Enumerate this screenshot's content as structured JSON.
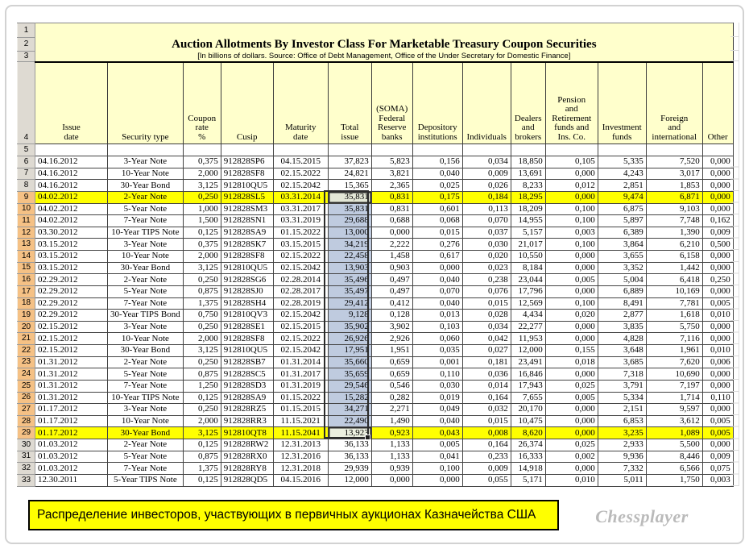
{
  "sheet": {
    "title": "Auction Allotments By Investor Class For Marketable Treasury Coupon Securities",
    "subtitle": "[In billions of dollars. Source: Office of Debt Management, Office of the Under Secretary for Domestic Finance]",
    "gutter_top": [
      "1",
      "2",
      "3",
      "4",
      "5"
    ],
    "columns": [
      "Issue\ndate",
      "Security type",
      "Coupon\nrate\n%",
      "Cusip",
      "Maturity\ndate",
      "Total\nissue",
      "(SOMA)\nFederal\nReserve\nbanks",
      "Depository\ninstitutions",
      "Individuals",
      "Dealers\nand\nbrokers",
      "Pension\nand\nRetirement\nfunds and\nIns. Co.",
      "Investment\nfunds",
      "Foreign\nand\ninternational",
      "Other"
    ],
    "highlight_rows": [
      9,
      29
    ],
    "selection": {
      "from": 9,
      "to": 29,
      "column": "Total issue"
    },
    "rows": [
      {
        "n": 6,
        "c": [
          "04.16.2012",
          "3-Year Note",
          "0,375",
          "912828SP6",
          "04.15.2015",
          "37,823",
          "5,823",
          "0,156",
          "0,034",
          "18,850",
          "0,105",
          "5,335",
          "7,520",
          "0,000"
        ]
      },
      {
        "n": 7,
        "c": [
          "04.16.2012",
          "10-Year Note",
          "2,000",
          "912828SF8",
          "02.15.2022",
          "24,821",
          "3,821",
          "0,040",
          "0,009",
          "13,691",
          "0,000",
          "4,243",
          "3,017",
          "0,000"
        ]
      },
      {
        "n": 8,
        "c": [
          "04.16.2012",
          "30-Year Bond",
          "3,125",
          "912810QU5",
          "02.15.2042",
          "15,365",
          "2,365",
          "0,025",
          "0,026",
          "8,233",
          "0,012",
          "2,851",
          "1,853",
          "0,000"
        ]
      },
      {
        "n": 9,
        "c": [
          "04.02.2012",
          "2-Year Note",
          "0,250",
          "912828SL5",
          "03.31.2014",
          "35,831",
          "0,831",
          "0,175",
          "0,184",
          "18,295",
          "0,000",
          "9,474",
          "6,871",
          "0,000"
        ]
      },
      {
        "n": 10,
        "c": [
          "04.02.2012",
          "5-Year Note",
          "1,000",
          "912828SM3",
          "03.31.2017",
          "35,831",
          "0,831",
          "0,601",
          "0,113",
          "18,209",
          "0,100",
          "6,875",
          "9,103",
          "0,000"
        ]
      },
      {
        "n": 11,
        "c": [
          "04.02.2012",
          "7-Year Note",
          "1,500",
          "912828SN1",
          "03.31.2019",
          "29,688",
          "0,688",
          "0,068",
          "0,070",
          "14,955",
          "0,100",
          "5,897",
          "7,748",
          "0,162"
        ]
      },
      {
        "n": 12,
        "c": [
          "03.30.2012",
          "10-Year TIPS Note",
          "0,125",
          "912828SA9",
          "01.15.2022",
          "13,000",
          "0,000",
          "0,015",
          "0,037",
          "5,157",
          "0,003",
          "6,389",
          "1,390",
          "0,009"
        ]
      },
      {
        "n": 13,
        "c": [
          "03.15.2012",
          "3-Year Note",
          "0,375",
          "912828SK7",
          "03.15.2015",
          "34,219",
          "2,222",
          "0,276",
          "0,030",
          "21,017",
          "0,100",
          "3,864",
          "6,210",
          "0,500"
        ]
      },
      {
        "n": 14,
        "c": [
          "03.15.2012",
          "10-Year Note",
          "2,000",
          "912828SF8",
          "02.15.2022",
          "22,458",
          "1,458",
          "0,617",
          "0,020",
          "10,550",
          "0,000",
          "3,655",
          "6,158",
          "0,000"
        ]
      },
      {
        "n": 15,
        "c": [
          "03.15.2012",
          "30-Year Bond",
          "3,125",
          "912810QU5",
          "02.15.2042",
          "13,903",
          "0,903",
          "0,000",
          "0,023",
          "8,184",
          "0,000",
          "3,352",
          "1,442",
          "0,000"
        ]
      },
      {
        "n": 16,
        "c": [
          "02.29.2012",
          "2-Year Note",
          "0,250",
          "912828SG6",
          "02.28.2014",
          "35,496",
          "0,497",
          "0,040",
          "0,238",
          "23,044",
          "0,005",
          "5,004",
          "6,418",
          "0,250"
        ]
      },
      {
        "n": 17,
        "c": [
          "02.29.2012",
          "5-Year Note",
          "0,875",
          "912828SJ0",
          "02.28.2017",
          "35,497",
          "0,497",
          "0,070",
          "0,076",
          "17,796",
          "0,000",
          "6,889",
          "10,169",
          "0,000"
        ]
      },
      {
        "n": 18,
        "c": [
          "02.29.2012",
          "7-Year Note",
          "1,375",
          "912828SH4",
          "02.28.2019",
          "29,412",
          "0,412",
          "0,040",
          "0,015",
          "12,569",
          "0,100",
          "8,491",
          "7,781",
          "0,005"
        ]
      },
      {
        "n": 19,
        "c": [
          "02.29.2012",
          "30-Year TIPS Bond",
          "0,750",
          "912810QV3",
          "02.15.2042",
          "9,128",
          "0,128",
          "0,013",
          "0,028",
          "4,434",
          "0,020",
          "2,877",
          "1,618",
          "0,010"
        ]
      },
      {
        "n": 20,
        "c": [
          "02.15.2012",
          "3-Year Note",
          "0,250",
          "912828SE1",
          "02.15.2015",
          "35,902",
          "3,902",
          "0,103",
          "0,034",
          "22,277",
          "0,000",
          "3,835",
          "5,750",
          "0,000"
        ]
      },
      {
        "n": 21,
        "c": [
          "02.15.2012",
          "10-Year Note",
          "2,000",
          "912828SF8",
          "02.15.2022",
          "26,926",
          "2,926",
          "0,060",
          "0,042",
          "11,953",
          "0,000",
          "4,828",
          "7,116",
          "0,000"
        ]
      },
      {
        "n": 22,
        "c": [
          "02.15.2012",
          "30-Year Bond",
          "3,125",
          "912810QU5",
          "02.15.2042",
          "17,951",
          "1,951",
          "0,035",
          "0,027",
          "12,000",
          "0,155",
          "3,648",
          "1,961",
          "0,010"
        ]
      },
      {
        "n": 23,
        "c": [
          "01.31.2012",
          "2-Year Note",
          "0,250",
          "912828SB7",
          "01.31.2014",
          "35,660",
          "0,659",
          "0,001",
          "0,181",
          "23,491",
          "0,018",
          "3,685",
          "7,620",
          "0,006"
        ]
      },
      {
        "n": 24,
        "c": [
          "01.31.2012",
          "5-Year Note",
          "0,875",
          "912828SC5",
          "01.31.2017",
          "35,659",
          "0,659",
          "0,110",
          "0,036",
          "16,846",
          "0,000",
          "7,318",
          "10,690",
          "0,000"
        ]
      },
      {
        "n": 25,
        "c": [
          "01.31.2012",
          "7-Year Note",
          "1,250",
          "912828SD3",
          "01.31.2019",
          "29,546",
          "0,546",
          "0,030",
          "0,014",
          "17,943",
          "0,025",
          "3,791",
          "7,197",
          "0,000"
        ]
      },
      {
        "n": 26,
        "c": [
          "01.31.2012",
          "10-Year TIPS Note",
          "0,125",
          "912828SA9",
          "01.15.2022",
          "15,282",
          "0,282",
          "0,019",
          "0,164",
          "7,655",
          "0,005",
          "5,334",
          "1,714",
          "0,110"
        ]
      },
      {
        "n": 27,
        "c": [
          "01.17.2012",
          "3-Year Note",
          "0,250",
          "912828RZ5",
          "01.15.2015",
          "34,271",
          "2,271",
          "0,049",
          "0,032",
          "20,170",
          "0,000",
          "2,151",
          "9,597",
          "0,000"
        ]
      },
      {
        "n": 28,
        "c": [
          "01.17.2012",
          "10-Year Note",
          "2,000",
          "912828RR3",
          "11.15.2021",
          "22,490",
          "1,490",
          "0,040",
          "0,015",
          "10,475",
          "0,000",
          "6,853",
          "3,612",
          "0,005"
        ]
      },
      {
        "n": 29,
        "c": [
          "01.17.2012",
          "30-Year Bond",
          "3,125",
          "912810QT8",
          "11.15.2041",
          "13,923",
          "0,923",
          "0,043",
          "0,008",
          "8,620",
          "0,000",
          "3,235",
          "1,089",
          "0,005"
        ]
      },
      {
        "n": 30,
        "c": [
          "01.03.2012",
          "2-Year Note",
          "0,125",
          "912828RW2",
          "12.31.2013",
          "36,133",
          "1,133",
          "0,005",
          "0,164",
          "26,374",
          "0,025",
          "2,933",
          "5,500",
          "0,000"
        ]
      },
      {
        "n": 31,
        "c": [
          "01.03.2012",
          "5-Year Note",
          "0,875",
          "912828RX0",
          "12.31.2016",
          "36,133",
          "1,133",
          "0,041",
          "0,233",
          "16,333",
          "0,002",
          "9,936",
          "8,446",
          "0,009"
        ]
      },
      {
        "n": 32,
        "c": [
          "01.03.2012",
          "7-Year Note",
          "1,375",
          "912828RY8",
          "12.31.2018",
          "29,939",
          "0,939",
          "0,100",
          "0,009",
          "14,918",
          "0,000",
          "7,332",
          "6,566",
          "0,075"
        ]
      },
      {
        "n": 33,
        "c": [
          "12.30.2011",
          "5-Year TIPS Note",
          "0,125",
          "912828QD5",
          "04.15.2016",
          "12,000",
          "0,000",
          "0,000",
          "0,055",
          "5,171",
          "0,010",
          "5,011",
          "1,750",
          "0,003"
        ]
      }
    ]
  },
  "footer": {
    "banner": "Распределение инвесторов, участвующих в первичных аукционах Казначейства США",
    "watermark": "Chessplayer"
  },
  "colors": {
    "sheet_yellow": "#FFFFCC",
    "highlight_yellow": "#FFFF00",
    "row_header_selected": "#F5C185",
    "selection_fill": "#BFCBDF"
  }
}
